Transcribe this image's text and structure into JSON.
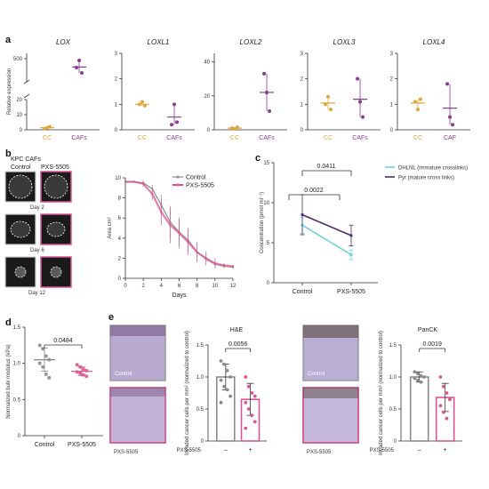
{
  "colors": {
    "cc": "#e0a63a",
    "caf": "#8b3c8f",
    "pink": "#d9568f",
    "gray": "#8a8a8a",
    "cyan": "#6fd0dc",
    "purple": "#4b2e6b",
    "dark": "#333333"
  },
  "panel_labels": {
    "a": "a",
    "b": "b",
    "c": "c",
    "d": "d",
    "e": "e"
  },
  "panel_b": {
    "header": "KPC CAFs",
    "col_control": "Control",
    "col_treated": "PXS-5505",
    "day_labels": [
      "Day 2",
      "Day 6",
      "Day 12"
    ]
  },
  "panel_e": {
    "control_label": "Control",
    "treated_label": "PXS-5505"
  },
  "chart_data": [
    {
      "id": "a-lox",
      "type": "scatter",
      "title": "LOX",
      "ylabel": "Relative expression",
      "categories": [
        "CC",
        "CAFs"
      ],
      "yticks": [
        "0",
        "10",
        "20",
        "500"
      ],
      "points": [
        [
          0.8,
          1.4,
          2.0
        ],
        [
          450,
          490,
          420
        ]
      ],
      "means": [
        1.4,
        453
      ]
    },
    {
      "id": "a-loxl1",
      "type": "scatter",
      "title": "LOXL1",
      "categories": [
        "CC",
        "CAFs"
      ],
      "yticks": [
        "0",
        "1",
        "2",
        "3"
      ],
      "ylim": [
        0,
        3
      ],
      "points": [
        [
          1.0,
          1.1,
          0.95
        ],
        [
          0.2,
          1.0,
          0.3
        ]
      ],
      "means": [
        1.0,
        0.5
      ]
    },
    {
      "id": "a-loxl2",
      "type": "scatter",
      "title": "LOXL2",
      "categories": [
        "CC",
        "CAFs"
      ],
      "yticks": [
        "0",
        "20",
        "40"
      ],
      "ylim": [
        0,
        45
      ],
      "points": [
        [
          1.0,
          0.5,
          1.5
        ],
        [
          33,
          22,
          11
        ]
      ],
      "means": [
        1.0,
        22
      ]
    },
    {
      "id": "a-loxl3",
      "type": "scatter",
      "title": "LOXL3",
      "categories": [
        "CC",
        "CAFs"
      ],
      "yticks": [
        "0",
        "1",
        "2",
        "3"
      ],
      "ylim": [
        0,
        3
      ],
      "points": [
        [
          1.0,
          1.3,
          0.8
        ],
        [
          2.0,
          1.1,
          0.5
        ]
      ],
      "means": [
        1.05,
        1.2
      ]
    },
    {
      "id": "a-loxl4",
      "type": "scatter",
      "title": "LOXL4",
      "categories": [
        "CC",
        "CAF"
      ],
      "yticks": [
        "0",
        "1",
        "2",
        "3"
      ],
      "ylim": [
        0,
        3
      ],
      "points": [
        [
          1.1,
          0.8,
          1.2
        ],
        [
          1.8,
          0.5,
          0.2
        ]
      ],
      "means": [
        1.05,
        0.85
      ]
    },
    {
      "id": "b-area",
      "type": "line",
      "xlabel": "Days",
      "ylabel": "Area cm²",
      "x": [
        0,
        1,
        2,
        3,
        4,
        5,
        6,
        7,
        8,
        9,
        10,
        11,
        12
      ],
      "xlim": [
        0,
        12
      ],
      "ylim": [
        0,
        10
      ],
      "xticks": [
        "0",
        "2",
        "4",
        "6",
        "8",
        "10",
        "12"
      ],
      "yticks": [
        "0",
        "2",
        "4",
        "6",
        "8",
        "10"
      ],
      "series": [
        {
          "name": "Control",
          "values": [
            9.6,
            9.6,
            9.5,
            8.9,
            7.3,
            5.6,
            4.6,
            3.8,
            2.6,
            1.9,
            1.4,
            1.2,
            1.1
          ],
          "err": [
            0,
            0.1,
            0.2,
            0.4,
            1.0,
            1.6,
            1.4,
            1.2,
            0.9,
            0.6,
            0.4,
            0.2,
            0.1
          ]
        },
        {
          "name": "PXS-5505",
          "values": [
            9.6,
            9.6,
            9.4,
            8.4,
            6.6,
            5.3,
            4.5,
            3.6,
            2.6,
            2.0,
            1.5,
            1.3,
            1.2
          ],
          "err": [
            0,
            0.1,
            0.3,
            0.6,
            1.3,
            1.8,
            1.5,
            1.3,
            1.0,
            0.7,
            0.5,
            0.2,
            0.1
          ]
        }
      ]
    },
    {
      "id": "c-crosslinks",
      "type": "line",
      "ylabel": "Concentration (pmol ml⁻¹)",
      "categories": [
        "Control",
        "PXS-5505"
      ],
      "ylim": [
        0,
        15
      ],
      "yticks": [
        "0",
        "5",
        "10",
        "15"
      ],
      "series": [
        {
          "name": "DHLNL (immature crosslinks)",
          "values": [
            7.2,
            3.5
          ],
          "err": [
            1.0,
            0.6
          ]
        },
        {
          "name": "Pyr (mature cross links)",
          "values": [
            8.5,
            5.9
          ],
          "err": [
            2.5,
            1.3
          ]
        }
      ],
      "pvalues": [
        {
          "text": "0.0411",
          "from": 0,
          "to": 1,
          "level": 2
        },
        {
          "text": "0.0022",
          "from": 0,
          "to": 1,
          "level": 1
        }
      ]
    },
    {
      "id": "d-bulk",
      "type": "scatter",
      "ylabel": "Normalized bulk modulus (kPa)",
      "categories": [
        "Control",
        "PXS-5505"
      ],
      "ylim": [
        0,
        1.5
      ],
      "yticks": [
        "0",
        "0.5",
        "1.0",
        "1.5"
      ],
      "points": [
        [
          1.25,
          1.2,
          1.1,
          1.05,
          1.0,
          0.95,
          0.85,
          0.8
        ],
        [
          0.98,
          0.95,
          0.92,
          0.9,
          0.88,
          0.86,
          0.84,
          0.82
        ]
      ],
      "means": [
        1.05,
        0.89
      ],
      "err": [
        0.16,
        0.06
      ],
      "pvalue": "0.0484"
    },
    {
      "id": "e-he",
      "type": "bar",
      "title": "H&E",
      "ylabel": "Invaded cancer cells per mm² (normalized to control)",
      "xlabel_row": "PXS-5505",
      "categories": [
        "–",
        "+"
      ],
      "ylim": [
        0,
        1.5
      ],
      "yticks": [
        "0",
        "0.5",
        "1.0",
        "1.5"
      ],
      "values": [
        1.0,
        0.65
      ],
      "err": [
        0.2,
        0.25
      ],
      "points": [
        [
          1.25,
          1.2,
          1.1,
          1.0,
          0.95,
          0.85,
          0.8,
          0.7,
          0.6
        ],
        [
          1.0,
          0.85,
          0.75,
          0.7,
          0.6,
          0.5,
          0.4,
          0.3,
          0.2
        ]
      ],
      "pvalue": "0.0056"
    },
    {
      "id": "e-panck",
      "type": "bar",
      "title": "PanCK",
      "ylabel": "Invaded cancer cells per mm² (normalized to control)",
      "xlabel_row": "PXS-5505",
      "categories": [
        "–",
        "+"
      ],
      "ylim": [
        0,
        1.5
      ],
      "yticks": [
        "0",
        "0.5",
        "1.0",
        "1.5"
      ],
      "values": [
        1.0,
        0.68
      ],
      "err": [
        0.08,
        0.22
      ],
      "points": [
        [
          1.08,
          1.05,
          1.02,
          1.0,
          0.98,
          0.95,
          0.92
        ],
        [
          1.0,
          0.85,
          0.75,
          0.65,
          0.55,
          0.45,
          0.35
        ]
      ],
      "pvalue": "0.0019"
    }
  ]
}
